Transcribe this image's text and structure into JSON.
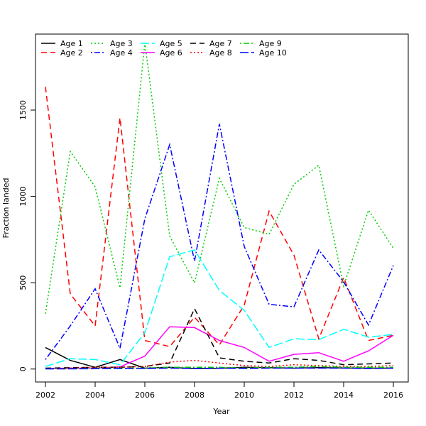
{
  "chart_data": {
    "type": "line",
    "title": "",
    "xlabel": "Year",
    "ylabel": "Fraction landed",
    "x": [
      2002,
      2003,
      2004,
      2005,
      2006,
      2007,
      2008,
      2009,
      2010,
      2011,
      2012,
      2013,
      2014,
      2015,
      2016
    ],
    "xticks": [
      2002,
      2004,
      2006,
      2008,
      2010,
      2012,
      2014,
      2016
    ],
    "yticks": [
      0,
      500,
      1000,
      1500
    ],
    "xlim": [
      2001.6,
      2016.6
    ],
    "ylim": [
      -75,
      1940
    ],
    "grid": false,
    "legend_position": "top-left",
    "series": [
      {
        "name": "Age 1",
        "color": "#000000",
        "dash": "solid",
        "values": [
          125,
          50,
          10,
          55,
          5,
          10,
          2,
          4,
          10,
          8,
          5,
          8,
          6,
          5,
          5
        ]
      },
      {
        "name": "Age 2",
        "color": "#ff0000",
        "dash": "dashed",
        "values": [
          1635,
          435,
          250,
          1455,
          165,
          130,
          300,
          140,
          370,
          915,
          660,
          175,
          530,
          165,
          195
        ]
      },
      {
        "name": "Age 3",
        "color": "#00cd00",
        "dash": "dotted",
        "values": [
          320,
          1260,
          1055,
          470,
          1890,
          770,
          500,
          1105,
          820,
          780,
          1070,
          1180,
          480,
          920,
          700
        ]
      },
      {
        "name": "Age 4",
        "color": "#0000ff",
        "dash": "dotdash",
        "values": [
          55,
          250,
          465,
          120,
          870,
          1300,
          625,
          1420,
          710,
          375,
          360,
          690,
          505,
          255,
          600
        ]
      },
      {
        "name": "Age 5",
        "color": "#00ffff",
        "dash": "longdash",
        "values": [
          15,
          60,
          55,
          25,
          210,
          650,
          690,
          455,
          340,
          125,
          175,
          170,
          230,
          185,
          200
        ]
      },
      {
        "name": "Age 6",
        "color": "#ff00ff",
        "dash": "solid",
        "values": [
          3,
          5,
          5,
          12,
          75,
          245,
          240,
          165,
          125,
          45,
          85,
          95,
          45,
          105,
          195
        ]
      },
      {
        "name": "Age 7",
        "color": "#000000",
        "dash": "dashed",
        "values": [
          5,
          8,
          10,
          10,
          15,
          35,
          350,
          65,
          45,
          35,
          60,
          50,
          25,
          30,
          35
        ]
      },
      {
        "name": "Age 8",
        "color": "#ff0000",
        "dash": "dotted",
        "values": [
          2,
          5,
          10,
          10,
          15,
          40,
          50,
          35,
          20,
          15,
          25,
          20,
          15,
          15,
          20
        ]
      },
      {
        "name": "Age 9",
        "color": "#00cd00",
        "dash": "dotdash",
        "values": [
          1,
          2,
          5,
          5,
          5,
          10,
          10,
          10,
          5,
          10,
          10,
          15,
          10,
          10,
          10
        ]
      },
      {
        "name": "Age 10",
        "color": "#0000ff",
        "dash": "longdash",
        "values": [
          1,
          1,
          2,
          3,
          3,
          5,
          3,
          5,
          3,
          5,
          5,
          5,
          5,
          3,
          5
        ]
      }
    ]
  }
}
